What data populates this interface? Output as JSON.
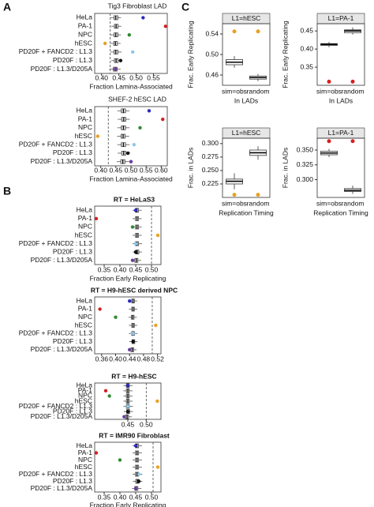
{
  "panels": [
    "A",
    "B",
    "C"
  ],
  "chart_data": [
    {
      "type": "dotbox",
      "title": "Tig3 Fibroblast LAD",
      "xlabel": "Fraction Lamina-Associated",
      "categories": [
        "HeLa",
        "PA-1",
        "NPC",
        "hESC",
        "PD20F + FANCD2 : L1.3",
        "PD20F : L1.3",
        "PD20F : L1.3/D205A"
      ],
      "values": [
        0.52,
        0.585,
        0.48,
        0.41,
        0.49,
        0.455,
        0.44
      ],
      "colors": [
        "#2b2bbd",
        "#d62020",
        "#2e8b2e",
        "#e8a020",
        "#8ec8e8",
        "#111111",
        "#6a3d9a"
      ],
      "box": {
        "low": [
          0.425,
          0.428,
          0.425,
          0.425,
          0.426,
          0.428,
          0.422
        ],
        "q1": [
          0.436,
          0.437,
          0.436,
          0.435,
          0.436,
          0.437,
          0.434
        ],
        "median": [
          0.441,
          0.442,
          0.441,
          0.44,
          0.441,
          0.442,
          0.439
        ],
        "q3": [
          0.447,
          0.448,
          0.447,
          0.446,
          0.447,
          0.448,
          0.445
        ],
        "high": [
          0.456,
          0.457,
          0.456,
          0.455,
          0.458,
          0.457,
          0.455
        ]
      },
      "reference_line": 0.425,
      "xlim": [
        0.38,
        0.59
      ],
      "xticks": [
        {
          "value": 0.4,
          "label": "0.40"
        },
        {
          "value": 0.45,
          "label": "0.45"
        },
        {
          "value": 0.5,
          "label": "0.50"
        },
        {
          "value": 0.55,
          "label": "0.55"
        }
      ]
    },
    {
      "type": "dotbox",
      "title": "SHEF-2 hESC LAD",
      "xlabel": "Fraction Lamina-Associated",
      "categories": [
        "HeLa",
        "PA-1",
        "NPC",
        "hESC",
        "PD20F + FANCD2 : L1.3",
        "PD20F : L1.3",
        "PD20F : L1.3/D205A"
      ],
      "values": [
        0.56,
        0.605,
        0.53,
        0.39,
        0.51,
        0.49,
        0.5
      ],
      "colors": [
        "#2b2bbd",
        "#d62020",
        "#2e8b2e",
        "#e8a020",
        "#8ec8e8",
        "#111111",
        "#6a3d9a"
      ],
      "box": {
        "low": [
          0.455,
          0.456,
          0.455,
          0.454,
          0.455,
          0.456,
          0.453
        ],
        "q1": [
          0.468,
          0.469,
          0.468,
          0.467,
          0.468,
          0.469,
          0.466
        ],
        "median": [
          0.475,
          0.476,
          0.475,
          0.474,
          0.475,
          0.476,
          0.473
        ],
        "q3": [
          0.482,
          0.483,
          0.482,
          0.481,
          0.482,
          0.483,
          0.48
        ],
        "high": [
          0.495,
          0.496,
          0.495,
          0.494,
          0.496,
          0.497,
          0.494
        ]
      },
      "reference_line": 0.425,
      "xlim": [
        0.38,
        0.62
      ],
      "xticks": [
        {
          "value": 0.4,
          "label": "0.40"
        },
        {
          "value": 0.45,
          "label": "0.45"
        },
        {
          "value": 0.5,
          "label": "0.50"
        },
        {
          "value": 0.55,
          "label": "0.55"
        },
        {
          "value": 0.6,
          "label": "0.60"
        }
      ]
    },
    {
      "type": "dotbox",
      "title": "RT = HeLaS3",
      "xlabel": "Fraction Early Replicating",
      "categories": [
        "HeLa",
        "PA-1",
        "NPC",
        "hESC",
        "PD20F + FANCD2 : L1.3",
        "PD20F : L1.3",
        "PD20F : L1.3/D205A"
      ],
      "values": [
        0.45,
        0.325,
        0.44,
        0.52,
        0.45,
        0.45,
        0.44
      ],
      "colors": [
        "#2b2bbd",
        "#d62020",
        "#2e8b2e",
        "#e8a020",
        "#8ec8e8",
        "#111111",
        "#6a3d9a"
      ],
      "box": {
        "low": [
          0.44,
          0.44,
          0.44,
          0.44,
          0.44,
          0.441,
          0.438
        ],
        "q1": [
          0.449,
          0.449,
          0.449,
          0.449,
          0.449,
          0.45,
          0.447
        ],
        "median": [
          0.454,
          0.454,
          0.454,
          0.454,
          0.454,
          0.455,
          0.452
        ],
        "q3": [
          0.459,
          0.459,
          0.459,
          0.459,
          0.459,
          0.46,
          0.457
        ],
        "high": [
          0.469,
          0.469,
          0.469,
          0.469,
          0.47,
          0.47,
          0.467
        ]
      },
      "reference_line": 0.5,
      "xlim": [
        0.32,
        0.53
      ],
      "xticks": [
        {
          "value": 0.35,
          "label": "0.35"
        },
        {
          "value": 0.4,
          "label": "0.40"
        },
        {
          "value": 0.45,
          "label": "0.45"
        },
        {
          "value": 0.5,
          "label": "0.50"
        }
      ]
    },
    {
      "type": "dotbox",
      "title": "RT = H9-hESC derived NPC",
      "categories": [
        "HeLa",
        "PA-1",
        "NPC",
        "hESC",
        "PD20F + FANCD2 : L1.3",
        "PD20F : L1.3",
        "PD20F : L1.3/D205A"
      ],
      "values": [
        0.44,
        0.355,
        0.4,
        0.515,
        0.45,
        0.45,
        0.44
      ],
      "colors": [
        "#2b2bbd",
        "#d62020",
        "#2e8b2e",
        "#e8a020",
        "#8ec8e8",
        "#111111",
        "#6a3d9a"
      ],
      "box": {
        "low": [
          0.438,
          0.438,
          0.437,
          0.438,
          0.438,
          0.439,
          0.436
        ],
        "q1": [
          0.446,
          0.446,
          0.445,
          0.446,
          0.446,
          0.447,
          0.444
        ],
        "median": [
          0.45,
          0.45,
          0.449,
          0.45,
          0.45,
          0.451,
          0.448
        ],
        "q3": [
          0.454,
          0.454,
          0.453,
          0.454,
          0.454,
          0.455,
          0.452
        ],
        "high": [
          0.462,
          0.462,
          0.461,
          0.462,
          0.463,
          0.463,
          0.46
        ]
      },
      "reference_line": 0.505,
      "xlim": [
        0.34,
        0.53
      ],
      "xticks": [
        {
          "value": 0.36,
          "label": "0.36"
        },
        {
          "value": 0.4,
          "label": "0.40"
        },
        {
          "value": 0.44,
          "label": "0.44"
        },
        {
          "value": 0.48,
          "label": "0.48"
        },
        {
          "value": 0.52,
          "label": "0.52"
        }
      ]
    },
    {
      "type": "dotbox",
      "title": "RT = H9-hESC",
      "categories": [
        "HeLa",
        "PA-1",
        "NPC",
        "hESC",
        "PD20F + FANCD2 : L1.3",
        "PD20F : L1.3",
        "PD20F : L1.3/D205A"
      ],
      "values": [
        0.45,
        0.39,
        0.4,
        0.53,
        0.45,
        0.45,
        0.44
      ],
      "colors": [
        "#2b2bbd",
        "#d62020",
        "#2e8b2e",
        "#e8a020",
        "#8ec8e8",
        "#111111",
        "#6a3d9a"
      ],
      "box": {
        "low": [
          0.438,
          0.438,
          0.438,
          0.438,
          0.438,
          0.439,
          0.436
        ],
        "q1": [
          0.446,
          0.446,
          0.446,
          0.446,
          0.446,
          0.447,
          0.444
        ],
        "median": [
          0.45,
          0.45,
          0.45,
          0.45,
          0.45,
          0.451,
          0.448
        ],
        "q3": [
          0.454,
          0.454,
          0.454,
          0.454,
          0.454,
          0.455,
          0.452
        ],
        "high": [
          0.463,
          0.463,
          0.463,
          0.463,
          0.464,
          0.464,
          0.461
        ]
      },
      "reference_line": 0.5,
      "xlim": [
        0.36,
        0.54
      ],
      "xticks": [
        {
          "value": 0.45,
          "label": "0.45"
        },
        {
          "value": 0.5,
          "label": "0.50"
        }
      ]
    },
    {
      "type": "dotbox",
      "title": "RT = IMR90 Fibroblast",
      "xlabel": "Fraction Early Replicating",
      "categories": [
        "HeLa",
        "PA-1",
        "NPC",
        "hESC",
        "PD20F + FANCD2 : L1.3",
        "PD20F : L1.3",
        "PD20F : L1.3/D205A"
      ],
      "values": [
        0.45,
        0.325,
        0.4,
        0.52,
        0.46,
        0.46,
        0.45
      ],
      "colors": [
        "#2b2bbd",
        "#d62020",
        "#2e8b2e",
        "#e8a020",
        "#8ec8e8",
        "#111111",
        "#6a3d9a"
      ],
      "box": {
        "low": [
          0.44,
          0.44,
          0.44,
          0.44,
          0.44,
          0.441,
          0.438
        ],
        "q1": [
          0.449,
          0.449,
          0.449,
          0.449,
          0.449,
          0.45,
          0.447
        ],
        "median": [
          0.454,
          0.454,
          0.454,
          0.454,
          0.454,
          0.455,
          0.452
        ],
        "q3": [
          0.459,
          0.459,
          0.459,
          0.459,
          0.459,
          0.46,
          0.457
        ],
        "high": [
          0.47,
          0.47,
          0.47,
          0.47,
          0.471,
          0.471,
          0.468
        ]
      },
      "reference_line": 0.505,
      "xlim": [
        0.32,
        0.53
      ],
      "xticks": [
        {
          "value": 0.35,
          "label": "0.35"
        },
        {
          "value": 0.4,
          "label": "0.40"
        },
        {
          "value": 0.45,
          "label": "0.45"
        },
        {
          "value": 0.5,
          "label": "0.50"
        }
      ]
    },
    {
      "type": "box",
      "title": "L1=hESC",
      "xlabel": "In LADs",
      "ylabel": "Frac. Early Replicating",
      "categories": [
        "sim=obs",
        "random"
      ],
      "values": [
        0.545,
        0.545
      ],
      "colors": [
        "#e8a020",
        "#e8a020"
      ],
      "box": {
        "low": [
          0.474,
          0.448
        ],
        "q1": [
          0.48,
          0.452
        ],
        "median": [
          0.485,
          0.455
        ],
        "q3": [
          0.49,
          0.458
        ],
        "high": [
          0.497,
          0.462
        ]
      },
      "ylim": [
        0.44,
        0.56
      ],
      "yticks": [
        {
          "value": 0.46,
          "label": "0.46"
        },
        {
          "value": 0.5,
          "label": "0.50"
        },
        {
          "value": 0.54,
          "label": "0.54"
        }
      ]
    },
    {
      "type": "box",
      "title": "L1=PA-1",
      "xlabel": "In LADs",
      "ylabel": "Frac. Early Replicating",
      "categories": [
        "sim=obs",
        "random"
      ],
      "values": [
        0.31,
        0.31
      ],
      "colors": [
        "#d62020",
        "#d62020"
      ],
      "box": {
        "low": [
          0.405,
          0.44
        ],
        "q1": [
          0.41,
          0.445
        ],
        "median": [
          0.413,
          0.45
        ],
        "q3": [
          0.415,
          0.453
        ],
        "high": [
          0.42,
          0.46
        ]
      },
      "ylim": [
        0.3,
        0.47
      ],
      "yticks": [
        {
          "value": 0.35,
          "label": "0.35"
        },
        {
          "value": 0.4,
          "label": "0.40"
        },
        {
          "value": 0.45,
          "label": "0.45"
        }
      ]
    },
    {
      "type": "box",
      "title": "L1=hESC",
      "xlabel": "Replication Timing",
      "ylabel": "Frac. in LADs",
      "categories": [
        "sim=obs",
        "random"
      ],
      "values": [
        0.205,
        0.205
      ],
      "colors": [
        "#e8a020",
        "#e8a020"
      ],
      "box": {
        "low": [
          0.215,
          0.27
        ],
        "q1": [
          0.225,
          0.278
        ],
        "median": [
          0.23,
          0.283
        ],
        "q3": [
          0.234,
          0.288
        ],
        "high": [
          0.245,
          0.295
        ]
      },
      "ylim": [
        0.2,
        0.31
      ],
      "yticks": [
        {
          "value": 0.225,
          "label": "0.225"
        },
        {
          "value": 0.25,
          "label": "0.250"
        },
        {
          "value": 0.275,
          "label": "0.275"
        },
        {
          "value": 0.3,
          "label": "0.300"
        }
      ]
    },
    {
      "type": "box",
      "title": "L1=PA-1",
      "xlabel": "Replication Timing",
      "ylabel": "Frac. in LADs",
      "categories": [
        "sim=obs",
        "random"
      ],
      "values": [
        0.365,
        0.365
      ],
      "colors": [
        "#d62020",
        "#d62020"
      ],
      "box": {
        "low": [
          0.338,
          0.276
        ],
        "q1": [
          0.342,
          0.28
        ],
        "median": [
          0.345,
          0.282
        ],
        "q3": [
          0.348,
          0.285
        ],
        "high": [
          0.352,
          0.29
        ]
      },
      "ylim": [
        0.27,
        0.37
      ],
      "yticks": [
        {
          "value": 0.3,
          "label": "0.300"
        },
        {
          "value": 0.325,
          "label": "0.325"
        },
        {
          "value": 0.35,
          "label": "0.350"
        }
      ]
    }
  ]
}
